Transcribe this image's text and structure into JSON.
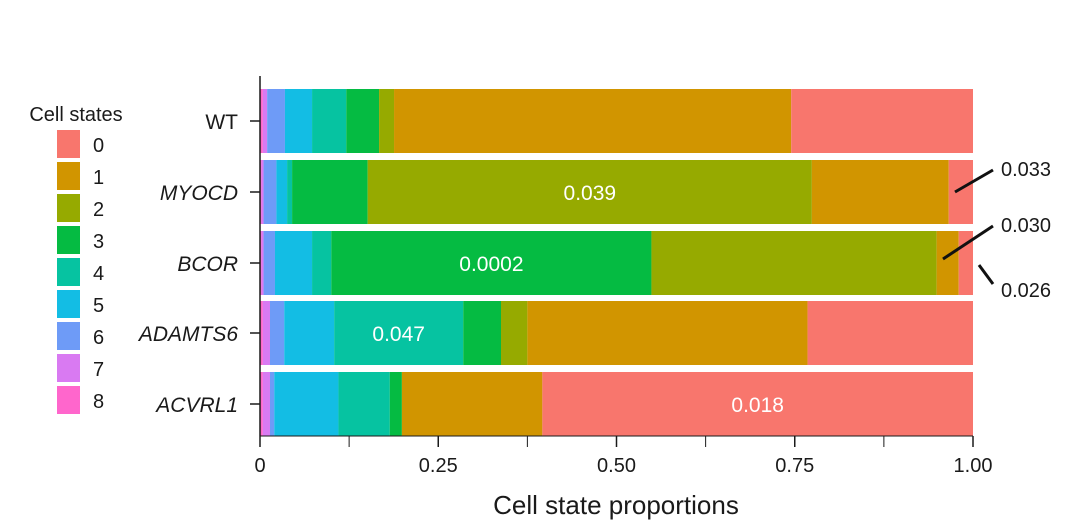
{
  "chart_data": {
    "type": "bar",
    "orientation": "horizontal",
    "stacked": true,
    "xlabel": "Cell state proportions",
    "xlim": [
      0,
      1
    ],
    "xticks": [
      0,
      0.25,
      0.5,
      0.75,
      1.0
    ],
    "xtick_labels": [
      "0",
      "0.25",
      "0.50",
      "0.75",
      "1.00"
    ],
    "grid": false,
    "legend": {
      "title": "Cell states",
      "placement": "left",
      "entries": [
        "0",
        "1",
        "2",
        "3",
        "4",
        "5",
        "6",
        "7",
        "8"
      ]
    },
    "series_colors": {
      "8": "#FF66CC",
      "7": "#D97AF2",
      "6": "#6E9BF7",
      "5": "#13BDE4",
      "4": "#06C3A1",
      "3": "#05BB42",
      "2": "#96AA00",
      "1": "#D19500",
      "0": "#F8766D"
    },
    "stack_order": [
      "8",
      "7",
      "6",
      "5",
      "4",
      "3",
      "2",
      "1",
      "0"
    ],
    "categories": [
      {
        "label": "WT",
        "italic": false
      },
      {
        "label": "MYOCD",
        "italic": true
      },
      {
        "label": "BCOR",
        "italic": true
      },
      {
        "label": "ADAMTS6",
        "italic": true
      },
      {
        "label": "ACVRL1",
        "italic": true
      }
    ],
    "series": [
      {
        "name": "8",
        "values": [
          0.004,
          0.002,
          0.002,
          0.004,
          0.004
        ]
      },
      {
        "name": "7",
        "values": [
          0.006,
          0.003,
          0.003,
          0.01,
          0.01
        ]
      },
      {
        "name": "6",
        "values": [
          0.025,
          0.018,
          0.016,
          0.02,
          0.006
        ]
      },
      {
        "name": "5",
        "values": [
          0.038,
          0.015,
          0.052,
          0.07,
          0.09
        ]
      },
      {
        "name": "4",
        "values": [
          0.048,
          0.007,
          0.027,
          0.181,
          0.072
        ]
      },
      {
        "name": "3",
        "values": [
          0.046,
          0.106,
          0.449,
          0.053,
          0.017
        ]
      },
      {
        "name": "2",
        "values": [
          0.021,
          0.623,
          0.4,
          0.037,
          0.0
        ]
      },
      {
        "name": "1",
        "values": [
          0.557,
          0.192,
          0.031,
          0.393,
          0.197
        ]
      },
      {
        "name": "0",
        "values": [
          0.255,
          0.034,
          0.02,
          0.232,
          0.604
        ]
      }
    ],
    "annotations": [
      {
        "text": "0.039",
        "row": "MYOCD",
        "series": "2",
        "placement": "inside",
        "color": "#ffffff"
      },
      {
        "text": "0.0002",
        "row": "BCOR",
        "series": "3",
        "placement": "inside",
        "color": "#ffffff"
      },
      {
        "text": "0.047",
        "row": "ADAMTS6",
        "series": "4",
        "placement": "inside",
        "color": "#ffffff"
      },
      {
        "text": "0.018",
        "row": "ACVRL1",
        "series": "0",
        "placement": "inside",
        "color": "#ffffff"
      },
      {
        "text": "0.033",
        "row": "MYOCD",
        "series": "0",
        "placement": "outside",
        "color": "#1a1a1a"
      },
      {
        "text": "0.030",
        "row": "BCOR",
        "series": "1",
        "placement": "outside",
        "color": "#1a1a1a"
      },
      {
        "text": "0.026",
        "row": "BCOR",
        "series": "0",
        "placement": "outside",
        "color": "#1a1a1a"
      }
    ]
  }
}
